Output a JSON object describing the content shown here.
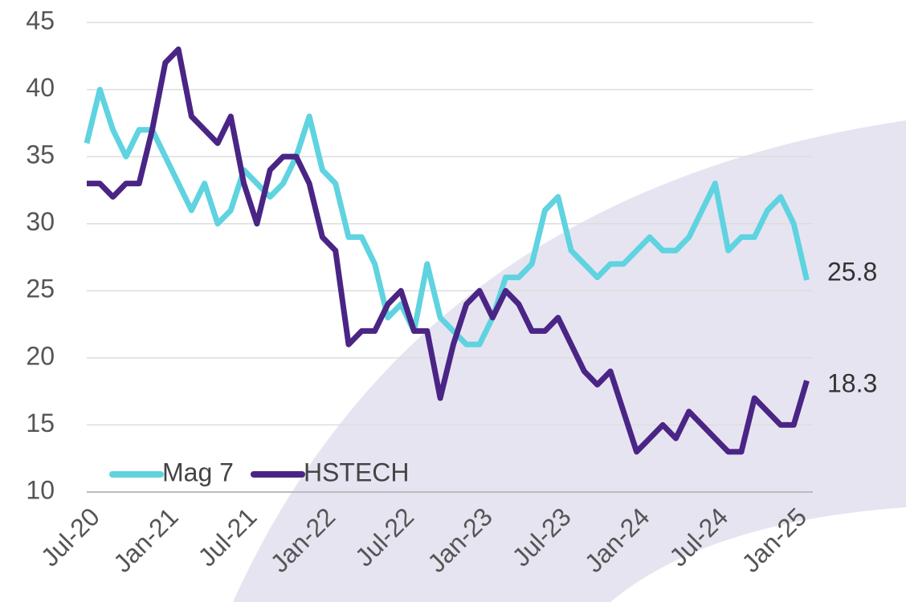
{
  "chart_data": {
    "type": "line",
    "categories": [
      "Jul-20",
      null,
      null,
      null,
      null,
      null,
      "Jan-21",
      null,
      null,
      null,
      null,
      null,
      "Jul-21",
      null,
      null,
      null,
      null,
      null,
      "Jan-22",
      null,
      null,
      null,
      null,
      null,
      "Jul-22",
      null,
      null,
      null,
      null,
      null,
      "Jan-23",
      null,
      null,
      null,
      null,
      null,
      "Jul-23",
      null,
      null,
      null,
      null,
      null,
      "Jan-24",
      null,
      null,
      null,
      null,
      null,
      "Jul-24",
      null,
      null,
      null,
      null,
      null,
      "Jan-25",
      null
    ],
    "series": [
      {
        "name": "Mag 7",
        "color": "#5fd3e0",
        "values": [
          36,
          40,
          37,
          35,
          37,
          37,
          35,
          33,
          31,
          33,
          30,
          31,
          34,
          33,
          32,
          33,
          35,
          38,
          34,
          33,
          29,
          29,
          27,
          23,
          24,
          22,
          27,
          23,
          22,
          21,
          21,
          23,
          26,
          26,
          27,
          31,
          32,
          28,
          27,
          26,
          27,
          27,
          28,
          29,
          28,
          28,
          29,
          31,
          33,
          28,
          29,
          29,
          31,
          32,
          30,
          25.8
        ]
      },
      {
        "name": "HSTECH",
        "color": "#4a2585",
        "values": [
          33,
          33,
          32,
          33,
          33,
          37,
          42,
          43,
          38,
          37,
          36,
          38,
          33,
          30,
          34,
          35,
          35,
          33,
          29,
          28,
          21,
          22,
          22,
          24,
          25,
          22,
          22,
          17,
          21,
          24,
          25,
          23,
          25,
          24,
          22,
          22,
          23,
          21,
          19,
          18,
          19,
          16,
          13,
          14,
          15,
          14,
          16,
          15,
          14,
          13,
          13,
          17,
          16,
          15,
          15,
          18.3
        ]
      }
    ],
    "ylim": [
      10,
      45
    ],
    "yticks": [
      10,
      15,
      20,
      25,
      30,
      35,
      40,
      45
    ],
    "grid": true,
    "legend": "lower left",
    "end_labels": true
  }
}
